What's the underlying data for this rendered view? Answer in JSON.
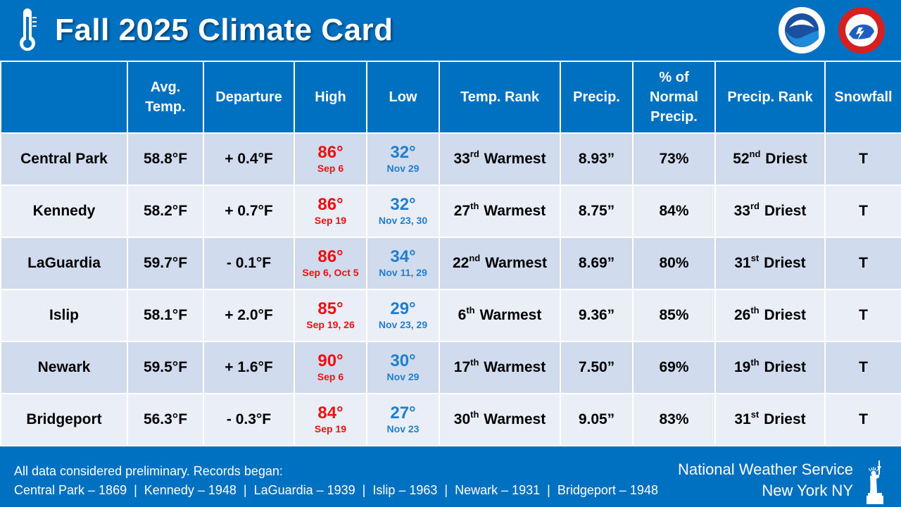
{
  "header": {
    "title": "Fall 2025 Climate Card",
    "icons": [
      "thermometer-icon",
      "noaa-logo",
      "nws-logo"
    ]
  },
  "table": {
    "columns": [
      "",
      "Avg. Temp.",
      "Departure",
      "High",
      "Low",
      "Temp. Rank",
      "Precip.",
      "% of Normal Precip.",
      "Precip. Rank",
      "Snowfall"
    ],
    "rows": [
      {
        "station": "Central Park",
        "avg": "58.8°F",
        "departure": "+ 0.4°F",
        "high": "86°",
        "high_date": "Sep 6",
        "low": "32°",
        "low_date": "Nov 29",
        "temp_rank_num": "33",
        "temp_rank_suffix": "rd",
        "temp_rank_label": "Warmest",
        "precip": "8.93”",
        "pct": "73%",
        "precip_rank_num": "52",
        "precip_rank_suffix": "nd",
        "precip_rank_label": "Driest",
        "snow": "T"
      },
      {
        "station": "Kennedy",
        "avg": "58.2°F",
        "departure": "+ 0.7°F",
        "high": "86°",
        "high_date": "Sep 19",
        "low": "32°",
        "low_date": "Nov 23, 30",
        "temp_rank_num": "27",
        "temp_rank_suffix": "th",
        "temp_rank_label": "Warmest",
        "precip": "8.75”",
        "pct": "84%",
        "precip_rank_num": "33",
        "precip_rank_suffix": "rd",
        "precip_rank_label": "Driest",
        "snow": "T"
      },
      {
        "station": "LaGuardia",
        "avg": "59.7°F",
        "departure": "- 0.1°F",
        "high": "86°",
        "high_date": "Sep 6, Oct 5",
        "low": "34°",
        "low_date": "Nov 11, 29",
        "temp_rank_num": "22",
        "temp_rank_suffix": "nd",
        "temp_rank_label": "Warmest",
        "precip": "8.69”",
        "pct": "80%",
        "precip_rank_num": "31",
        "precip_rank_suffix": "st",
        "precip_rank_label": "Driest",
        "snow": "T"
      },
      {
        "station": "Islip",
        "avg": "58.1°F",
        "departure": "+ 2.0°F",
        "high": "85°",
        "high_date": "Sep 19, 26",
        "low": "29°",
        "low_date": "Nov 23, 29",
        "temp_rank_num": "6",
        "temp_rank_suffix": "th",
        "temp_rank_label": "Warmest",
        "precip": "9.36”",
        "pct": "85%",
        "precip_rank_num": "26",
        "precip_rank_suffix": "th",
        "precip_rank_label": "Driest",
        "snow": "T"
      },
      {
        "station": "Newark",
        "avg": "59.5°F",
        "departure": "+ 1.6°F",
        "high": "90°",
        "high_date": "Sep 6",
        "low": "30°",
        "low_date": "Nov 29",
        "temp_rank_num": "17",
        "temp_rank_suffix": "th",
        "temp_rank_label": "Warmest",
        "precip": "7.50”",
        "pct": "69%",
        "precip_rank_num": "19",
        "precip_rank_suffix": "th",
        "precip_rank_label": "Driest",
        "snow": "T"
      },
      {
        "station": "Bridgeport",
        "avg": "56.3°F",
        "departure": "- 0.3°F",
        "high": "84°",
        "high_date": "Sep 19",
        "low": "27°",
        "low_date": "Nov 23",
        "temp_rank_num": "30",
        "temp_rank_suffix": "th",
        "temp_rank_label": "Warmest",
        "precip": "9.05”",
        "pct": "83%",
        "precip_rank_num": "31",
        "precip_rank_suffix": "st",
        "precip_rank_label": "Driest",
        "snow": "T"
      }
    ]
  },
  "footer": {
    "note": "All data considered preliminary. Records began:",
    "records": "Central Park – 1869  |  Kennedy – 1948  |  LaGuardia – 1939  |  Islip – 1963  |  Newark – 1931  |  Bridgeport – 1948",
    "org": "National Weather Service",
    "office": "New York NY"
  },
  "colors": {
    "brand_blue": "#0070c0",
    "row_odd": "#d0dcee",
    "row_even": "#e9eef7",
    "high_red": "#ee1010",
    "low_blue": "#1f7fcf"
  }
}
